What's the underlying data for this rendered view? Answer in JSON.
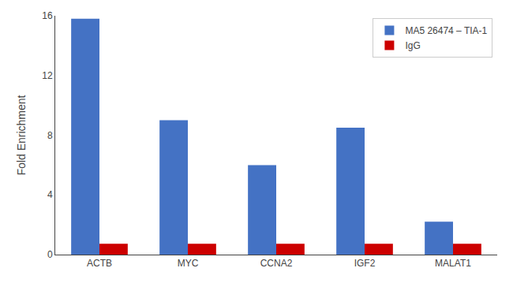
{
  "chart_data": {
    "type": "bar",
    "categories": [
      "ACTB",
      "MYC",
      "CCNA2",
      "IGF2",
      "MALAT1"
    ],
    "series": [
      {
        "name": "MA5 26474 – TIA-1",
        "color": "#4472C4",
        "values": [
          15.8,
          9.0,
          6.0,
          8.5,
          2.2
        ]
      },
      {
        "name": "IgG",
        "color": "#CC0000",
        "values": [
          0.72,
          0.72,
          0.72,
          0.72,
          0.72
        ]
      }
    ],
    "ylabel": "Fold Enrichment",
    "ylim": [
      0,
      16
    ],
    "yticks": [
      0,
      4,
      8,
      12,
      16
    ],
    "grid": false,
    "legend": "upper right"
  }
}
